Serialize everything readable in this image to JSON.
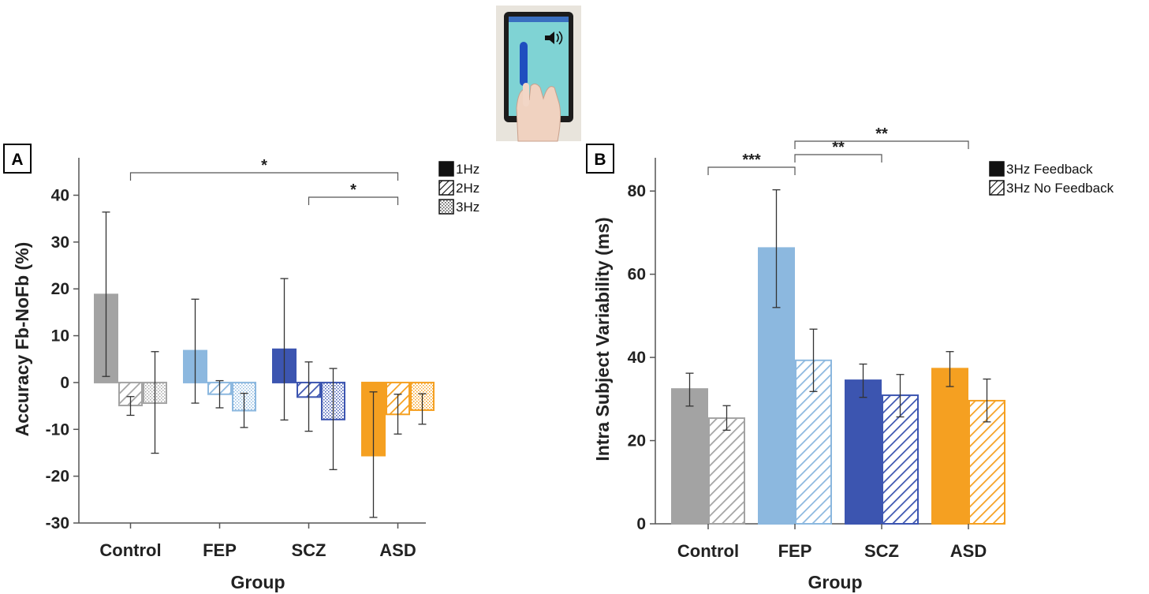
{
  "chart_data": [
    {
      "panel_label": "A",
      "type": "bar",
      "xlabel": "Group",
      "ylabel": "Accuracy Fb-NoFb (%)",
      "ylim": [
        -30,
        48
      ],
      "yticks": [
        40,
        30,
        20,
        10,
        0,
        -10,
        -20,
        -30
      ],
      "categories": [
        "Control",
        "FEP",
        "SCZ",
        "ASD"
      ],
      "group_colors": [
        "#a3a3a3",
        "#8cb8df",
        "#3c55b0",
        "#f5a021"
      ],
      "series": [
        {
          "name": "1Hz",
          "pattern": "solid",
          "values": [
            18.8,
            6.8,
            7.1,
            -15.6
          ],
          "err_low": [
            1.3,
            -4.4,
            -8.0,
            -28.8
          ],
          "err_high": [
            36.4,
            17.8,
            22.2,
            -2.0
          ]
        },
        {
          "name": "2Hz",
          "pattern": "diagonal",
          "values": [
            -4.9,
            -2.5,
            -3.1,
            -6.8
          ],
          "err_low": [
            -7.0,
            -5.4,
            -10.4,
            -11.0
          ],
          "err_high": [
            -3.0,
            0.4,
            4.4,
            -2.5
          ]
        },
        {
          "name": "3Hz",
          "pattern": "dots",
          "values": [
            -4.4,
            -6.0,
            -7.9,
            -5.9
          ],
          "err_low": [
            -15.1,
            -9.6,
            -18.6,
            -8.9
          ],
          "err_high": [
            6.6,
            -2.3,
            3.0,
            -2.4
          ]
        }
      ],
      "significance": [
        {
          "from": "Control",
          "to": "ASD",
          "label": "*"
        },
        {
          "from": "SCZ",
          "to": "ASD",
          "label": "*"
        }
      ],
      "legend": "top-right",
      "grid": false
    },
    {
      "panel_label": "B",
      "type": "bar",
      "xlabel": "Group",
      "ylabel": "Intra Subject Variability (ms)",
      "ylim": [
        0,
        88
      ],
      "yticks": [
        80,
        60,
        40,
        20,
        0
      ],
      "categories": [
        "Control",
        "FEP",
        "SCZ",
        "ASD"
      ],
      "group_colors": [
        "#a3a3a3",
        "#8cb8df",
        "#3c55b0",
        "#f5a021"
      ],
      "series": [
        {
          "name": "3Hz Feedback",
          "pattern": "solid",
          "values": [
            32.4,
            66.3,
            34.5,
            37.3
          ],
          "err_low": [
            28.3,
            52.0,
            30.4,
            33.0
          ],
          "err_high": [
            36.2,
            80.3,
            38.4,
            41.4
          ]
        },
        {
          "name": "3Hz No Feedback",
          "pattern": "diagonal",
          "values": [
            25.4,
            39.3,
            30.9,
            29.6
          ],
          "err_low": [
            22.5,
            31.8,
            25.7,
            24.5
          ],
          "err_high": [
            28.4,
            46.8,
            35.9,
            34.8
          ]
        }
      ],
      "significance": [
        {
          "from": "Control",
          "to": "FEP",
          "label": "***"
        },
        {
          "from": "FEP",
          "to": "SCZ",
          "label": "**"
        },
        {
          "from": "FEP",
          "to": "ASD",
          "label": "**"
        }
      ],
      "legend": "top-right",
      "grid": false
    }
  ],
  "inset_image": {
    "icon": "tablet-tapping-photo-icon"
  }
}
